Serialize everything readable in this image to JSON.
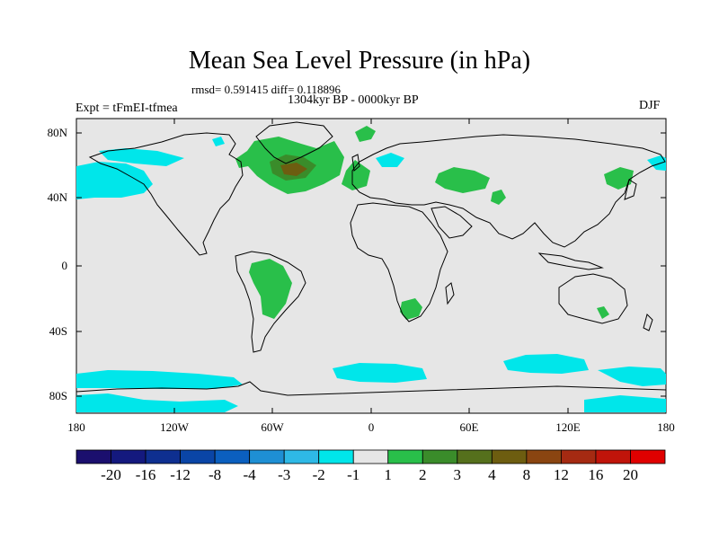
{
  "title": "Mean Sea Level Pressure (in hPa)",
  "stats_text": "rmsd= 0.591415 diff= 0.118896",
  "period_text": "1304kyr BP - 0000kyr BP",
  "experiment_text": "Expt = tFmEI-tfmea",
  "season": "DJF",
  "y_ticks": [
    "80N",
    "40N",
    "0",
    "40S",
    "80S"
  ],
  "x_ticks": [
    "180",
    "120W",
    "60W",
    "0",
    "60E",
    "120E",
    "180"
  ],
  "colorbar": {
    "labels": [
      "-20",
      "-16",
      "-12",
      "-8",
      "-4",
      "-3",
      "-2",
      "-1",
      "1",
      "2",
      "3",
      "4",
      "8",
      "12",
      "16",
      "20"
    ],
    "colors": [
      "#1b0f6e",
      "#14197e",
      "#0e2f90",
      "#0a45a6",
      "#0b5fbf",
      "#1e8fd4",
      "#2eb9e6",
      "#00e6ea",
      "#e6e6e6",
      "#29bf4a",
      "#3a8c2a",
      "#55701c",
      "#6d5d10",
      "#8a4511",
      "#a52a12",
      "#c0140a",
      "#e00000"
    ]
  },
  "colors": {
    "map_background": "#e6e6e6",
    "positive_green": "#29bf4a",
    "positive_dark": "#6d5d10",
    "negative_cyan": "#00e6ea"
  }
}
